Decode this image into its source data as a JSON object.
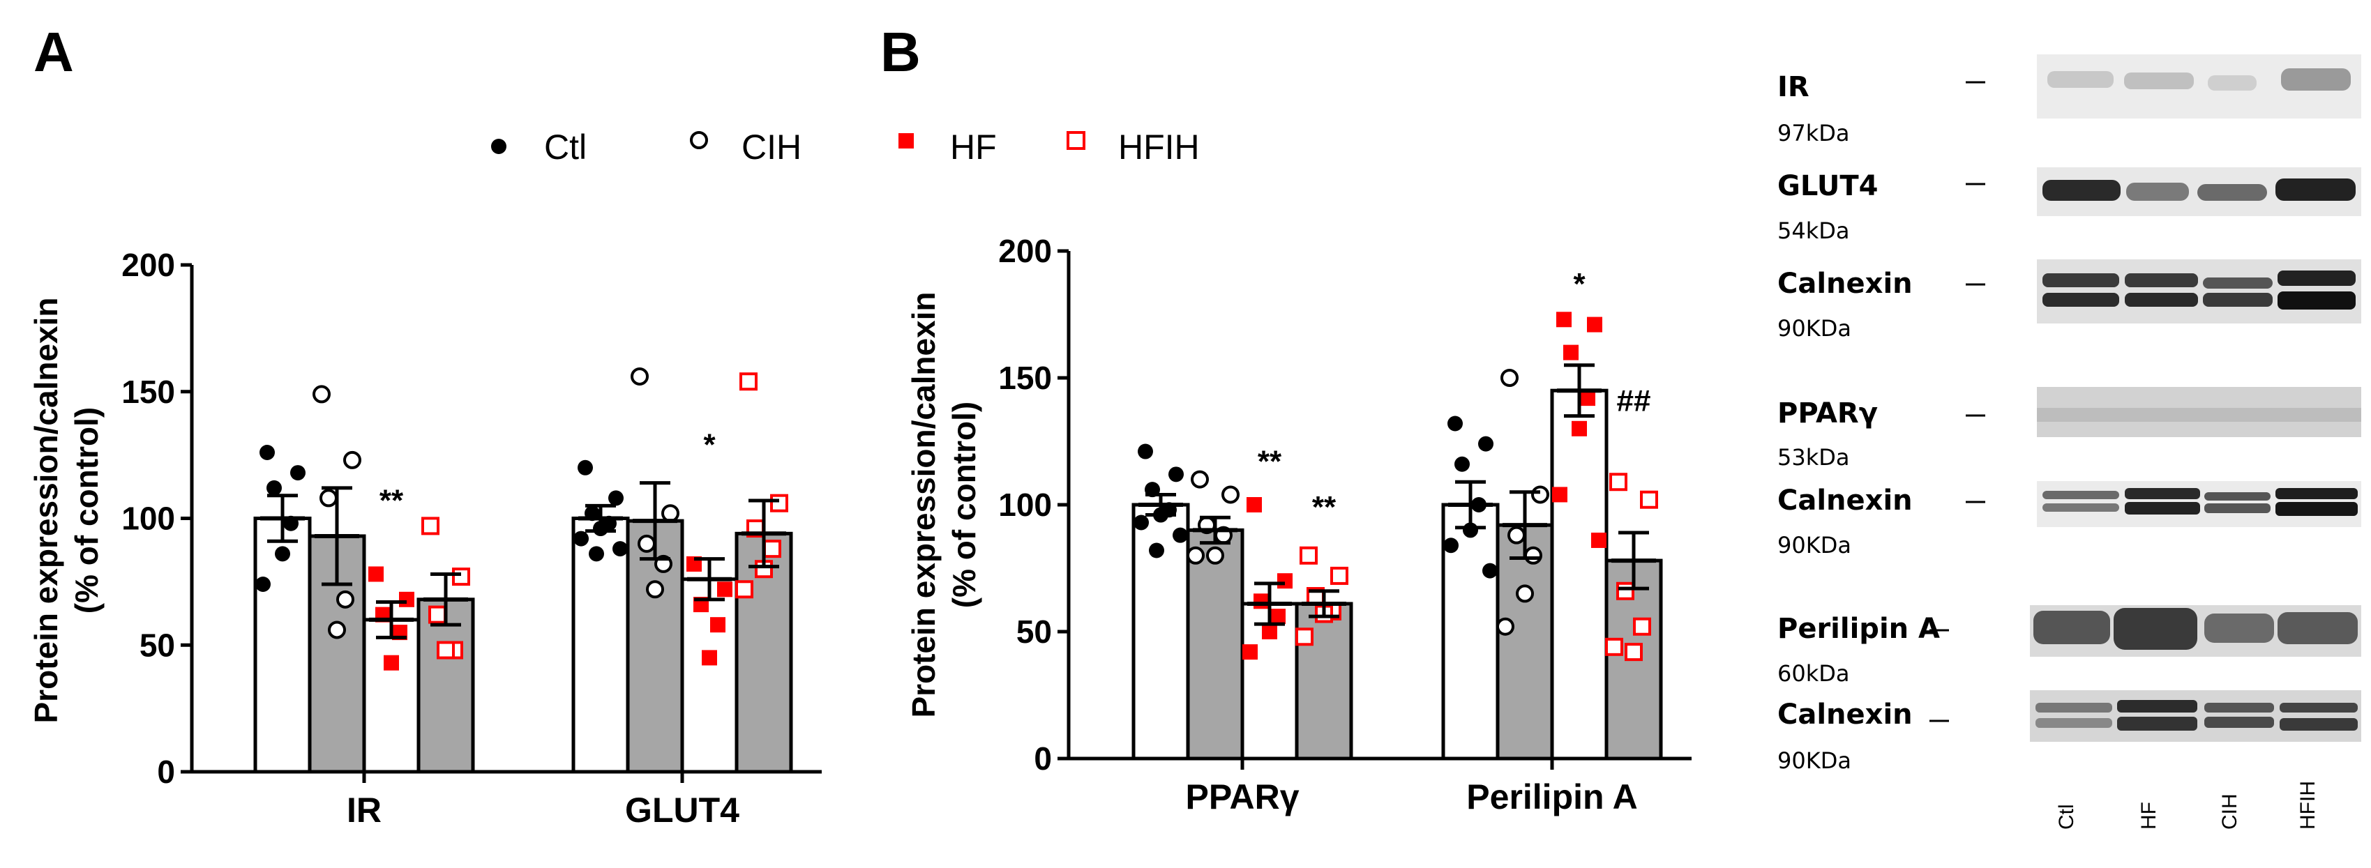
{
  "panels": {
    "a": "A",
    "b": "B"
  },
  "legend": [
    {
      "label": "Ctl",
      "color": "#000000",
      "shape": "circle-filled"
    },
    {
      "label": "CIH",
      "color": "#000000",
      "shape": "circle-open"
    },
    {
      "label": "HF",
      "color": "#ff0000",
      "shape": "square-filled"
    },
    {
      "label": "HFIH",
      "color": "#ff0000",
      "shape": "square-open"
    }
  ],
  "colors": {
    "ctl_bar": "#ffffff",
    "cih_bar": "#a6a6a6",
    "hf": "#ff0000",
    "ink": "#000000"
  },
  "chart_data": [
    {
      "type": "bar",
      "panel": "A",
      "ylabel_line1": "Protein expression/calnexin",
      "ylabel_line2": "(% of control)",
      "ylim": [
        0,
        200
      ],
      "yticks": [
        0,
        50,
        100,
        150,
        200
      ],
      "categories": [
        "IR",
        "GLUT4"
      ],
      "series": [
        {
          "name": "Ctl",
          "means": [
            100,
            100
          ],
          "sem": [
            9,
            5
          ],
          "points": [
            [
              126,
              118,
              112,
              98,
              86,
              74
            ],
            [
              120,
              108,
              102,
              98,
              96,
              92,
              88,
              86
            ]
          ]
        },
        {
          "name": "CIH",
          "means": [
            93,
            99
          ],
          "sem": [
            19,
            15
          ],
          "points": [
            [
              149,
              123,
              108,
              68,
              56
            ],
            [
              156,
              102,
              90,
              82,
              72
            ]
          ]
        },
        {
          "name": "HF",
          "means": [
            60,
            76
          ],
          "sem": [
            7,
            8
          ],
          "points": [
            [
              78,
              68,
              62,
              55,
              43
            ],
            [
              82,
              72,
              66,
              58,
              45
            ]
          ]
        },
        {
          "name": "HFIH",
          "means": [
            68,
            94
          ],
          "sem": [
            10,
            13
          ],
          "points": [
            [
              97,
              77,
              62,
              48,
              48
            ],
            [
              154,
              106,
              96,
              88,
              80,
              72
            ]
          ]
        }
      ],
      "annotations": [
        {
          "category": "IR",
          "series": "HF",
          "text": "**",
          "value": 103
        },
        {
          "category": "GLUT4",
          "series": "HF",
          "text": "*",
          "value": 125
        }
      ]
    },
    {
      "type": "bar",
      "panel": "B",
      "ylabel_line1": "Protein expression/calnexin",
      "ylabel_line2": "(% of control)",
      "ylim": [
        0,
        200
      ],
      "yticks": [
        0,
        50,
        100,
        150,
        200
      ],
      "categories": [
        "PPARγ",
        "Perilipin A"
      ],
      "series": [
        {
          "name": "Ctl",
          "means": [
            100,
            100
          ],
          "sem": [
            4,
            9
          ],
          "points": [
            [
              121,
              112,
              106,
              98,
              96,
              93,
              88,
              82
            ],
            [
              132,
              124,
              116,
              100,
              90,
              84,
              74
            ]
          ]
        },
        {
          "name": "CIH",
          "means": [
            90,
            92
          ],
          "sem": [
            5,
            13
          ],
          "points": [
            [
              110,
              104,
              92,
              88,
              80,
              80
            ],
            [
              150,
              104,
              88,
              80,
              65,
              52
            ]
          ]
        },
        {
          "name": "HF",
          "means": [
            61,
            145
          ],
          "sem": [
            8,
            10
          ],
          "points": [
            [
              100,
              70,
              62,
              56,
              50,
              42
            ],
            [
              173,
              171,
              160,
              142,
              130,
              104,
              86
            ]
          ]
        },
        {
          "name": "HFIH",
          "means": [
            61,
            78
          ],
          "sem": [
            5,
            11
          ],
          "points": [
            [
              80,
              72,
              64,
              58,
              57,
              48
            ],
            [
              109,
              102,
              66,
              52,
              42,
              44
            ]
          ]
        }
      ],
      "annotations": [
        {
          "category": "PPARγ",
          "series": "HF",
          "text": "**",
          "value": 113
        },
        {
          "category": "PPARγ",
          "series": "HFIH",
          "text": "**",
          "value": 95
        },
        {
          "category": "Perilipin A",
          "series": "HF",
          "text": "*",
          "value": 183
        },
        {
          "category": "Perilipin A",
          "series": "HFIH",
          "text": "##",
          "value": 137
        }
      ]
    }
  ],
  "blots": [
    {
      "name": "IR",
      "kda": "97kDa"
    },
    {
      "name": "GLUT4",
      "kda": "54kDa"
    },
    {
      "name": "Calnexin",
      "kda": "90KDa"
    },
    {
      "name": "PPARγ",
      "kda": "53kDa"
    },
    {
      "name": "Calnexin",
      "kda": "90KDa"
    },
    {
      "name": "Perilipin A",
      "kda": "60kDa"
    },
    {
      "name": "Calnexin",
      "kda": "90KDa"
    }
  ],
  "lanes": [
    "Ctl",
    "HF",
    "CIH",
    "HFIH"
  ]
}
